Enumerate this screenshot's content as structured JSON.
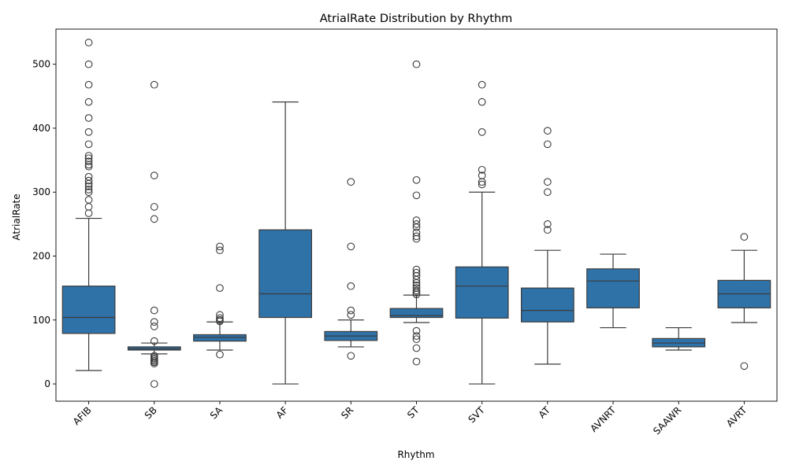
{
  "chart_data": {
    "type": "box",
    "title": "AtrialRate Distribution by Rhythm",
    "xlabel": "Rhythm",
    "ylabel": "AtrialRate",
    "ylim": [
      -27,
      555
    ],
    "yticks": [
      "0",
      "100",
      "200",
      "300",
      "400",
      "500"
    ],
    "color": "#2f72a8",
    "grid": false,
    "categories": [
      "AFIB",
      "SB",
      "SA",
      "AF",
      "SR",
      "ST",
      "SVT",
      "AT",
      "AVNRT",
      "SAAWR",
      "AVRT"
    ],
    "boxes": [
      {
        "category": "AFIB",
        "whisker_low": 21,
        "q1": 79,
        "median": 104,
        "q3": 153,
        "whisker_high": 259,
        "outliers": [
          267,
          277,
          288,
          300,
          304,
          309,
          313,
          318,
          324,
          340,
          343,
          348,
          353,
          357,
          375,
          394,
          416,
          441,
          468,
          500,
          534
        ]
      },
      {
        "category": "SB",
        "whisker_low": 47,
        "q1": 53,
        "median": 55,
        "q3": 58,
        "whisker_high": 64,
        "outliers": [
          0,
          32,
          34,
          36,
          38,
          40,
          42,
          44,
          67,
          90,
          97,
          115,
          258,
          277,
          326,
          468
        ]
      },
      {
        "category": "SA",
        "whisker_low": 53,
        "q1": 67,
        "median": 73,
        "q3": 77,
        "whisker_high": 97,
        "outliers": [
          46,
          98,
          100,
          103,
          108,
          150,
          209,
          215
        ]
      },
      {
        "category": "AF",
        "whisker_low": 0,
        "q1": 104,
        "median": 141,
        "q3": 241,
        "whisker_high": 441,
        "outliers": []
      },
      {
        "category": "SR",
        "whisker_low": 58,
        "q1": 68,
        "median": 75,
        "q3": 82,
        "whisker_high": 100,
        "outliers": [
          44,
          108,
          115,
          153,
          215,
          316
        ]
      },
      {
        "category": "ST",
        "whisker_low": 96,
        "q1": 104,
        "median": 107,
        "q3": 118,
        "whisker_high": 139,
        "outliers": [
          35,
          56,
          70,
          75,
          83,
          140,
          143,
          146,
          150,
          154,
          158,
          163,
          169,
          174,
          179,
          227,
          231,
          237,
          245,
          250,
          256,
          295,
          319,
          500
        ]
      },
      {
        "category": "SVT",
        "whisker_low": 0,
        "q1": 103,
        "median": 153,
        "q3": 183,
        "whisker_high": 300,
        "outliers": [
          312,
          316,
          326,
          335,
          394,
          441,
          468
        ]
      },
      {
        "category": "AT",
        "whisker_low": 31,
        "q1": 97,
        "median": 115,
        "q3": 150,
        "whisker_high": 209,
        "outliers": [
          241,
          250,
          300,
          316,
          375,
          396
        ]
      },
      {
        "category": "AVNRT",
        "whisker_low": 88,
        "q1": 119,
        "median": 161,
        "q3": 180,
        "whisker_high": 203,
        "outliers": []
      },
      {
        "category": "SAAWR",
        "whisker_low": 53,
        "q1": 58,
        "median": 64,
        "q3": 71,
        "whisker_high": 88,
        "outliers": []
      },
      {
        "category": "AVRT",
        "whisker_low": 96,
        "q1": 119,
        "median": 141,
        "q3": 162,
        "whisker_high": 209,
        "outliers": [
          28,
          230
        ]
      }
    ]
  }
}
